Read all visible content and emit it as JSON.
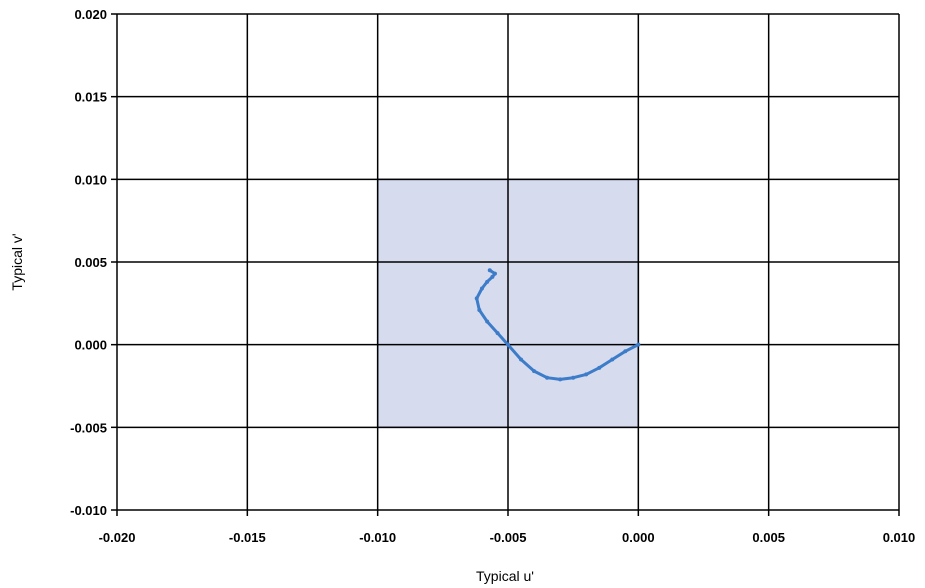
{
  "chart_data": {
    "type": "line",
    "title": "",
    "xlabel": "Typical u'",
    "ylabel": "Typical v'",
    "xlim": [
      -0.02,
      0.01
    ],
    "ylim": [
      -0.01,
      0.02
    ],
    "x_ticks": [
      -0.02,
      -0.015,
      -0.01,
      -0.005,
      0.0,
      0.005,
      0.01
    ],
    "y_ticks": [
      -0.01,
      -0.005,
      0.0,
      0.005,
      0.01,
      0.015,
      0.02
    ],
    "x_tick_labels": [
      "-0.020",
      "-0.015",
      "-0.010",
      "-0.005",
      "0.000",
      "0.005",
      "0.010"
    ],
    "y_tick_labels": [
      "-0.010",
      "-0.005",
      "0.000",
      "0.005",
      "0.010",
      "0.015",
      "0.020"
    ],
    "grid": true,
    "shaded_region": {
      "x_range": [
        -0.01,
        0.0
      ],
      "y_range": [
        -0.005,
        0.01
      ],
      "fill": "#d6dcee",
      "stroke": "#4f6fb0"
    },
    "series": [
      {
        "color": "#3d7cc9",
        "x": [
          0.0,
          -0.0005,
          -0.001,
          -0.0015,
          -0.002,
          -0.0025,
          -0.003,
          -0.0035,
          -0.004,
          -0.0045,
          -0.005,
          -0.0054,
          -0.0058,
          -0.0061,
          -0.0062,
          -0.006,
          -0.0058,
          -0.0056,
          -0.0055,
          -0.0057
        ],
        "y": [
          0.0,
          -0.0004,
          -0.0009,
          -0.0014,
          -0.0018,
          -0.002,
          -0.0021,
          -0.002,
          -0.0016,
          -0.0009,
          0.0,
          0.0007,
          0.0014,
          0.0021,
          0.0028,
          0.0034,
          0.0038,
          0.0041,
          0.0043,
          0.0045
        ]
      }
    ]
  }
}
